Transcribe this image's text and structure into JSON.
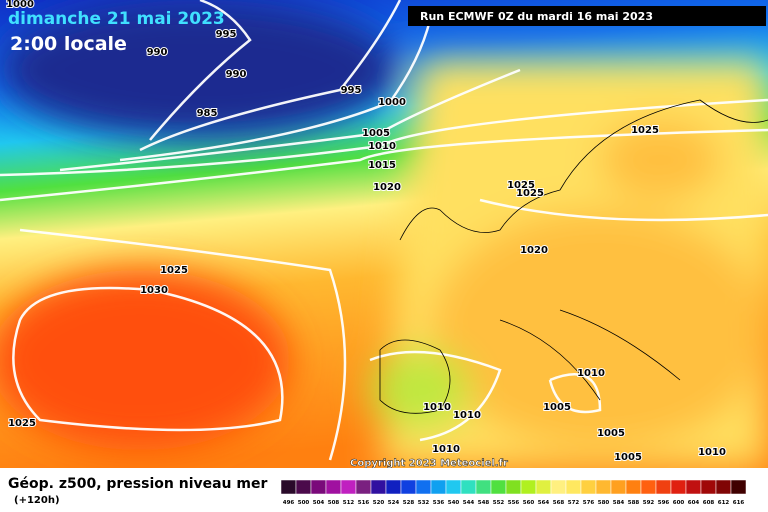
{
  "header": {
    "title": "dimanche 21 mai 2023",
    "subtitle": "2:00 locale",
    "run": "Run ECMWF 0Z du mardi 16 mai 2023"
  },
  "isobar_labels": [
    "1000",
    "990",
    "995",
    "990",
    "985",
    "995",
    "1000",
    "1005",
    "1010",
    "1015",
    "1020",
    "1025",
    "1025",
    "1025",
    "1020",
    "1025",
    "1030",
    "1025",
    "1010",
    "1005",
    "1010",
    "1010",
    "1005",
    "1005",
    "1010",
    "1010"
  ],
  "copyright": "Copyright 2023 Meteociel.fr",
  "footer": {
    "title": "Géop. z500, pression niveau mer",
    "lead": "(+120h)"
  },
  "colorbar": {
    "labels": [
      496,
      500,
      504,
      508,
      512,
      516,
      520,
      524,
      528,
      532,
      536,
      540,
      544,
      548,
      552,
      556,
      560,
      564,
      568,
      572,
      576,
      580,
      584,
      588,
      592,
      596,
      600,
      604,
      608,
      612,
      616
    ],
    "colors": [
      "#2a0a2a",
      "#4b0a4b",
      "#7a0a7a",
      "#a010a0",
      "#c020c0",
      "#7a2080",
      "#3010a0",
      "#1020c0",
      "#1040e0",
      "#1070f0",
      "#10a0f0",
      "#20c8f0",
      "#30e0c0",
      "#40e080",
      "#50e040",
      "#80e020",
      "#b0f020",
      "#e0f040",
      "#fff080",
      "#ffe860",
      "#ffd040",
      "#ffb830",
      "#ffa020",
      "#ff8010",
      "#ff6010",
      "#f04010",
      "#e02010",
      "#c01010",
      "#a00808",
      "#800505",
      "#400000"
    ]
  }
}
